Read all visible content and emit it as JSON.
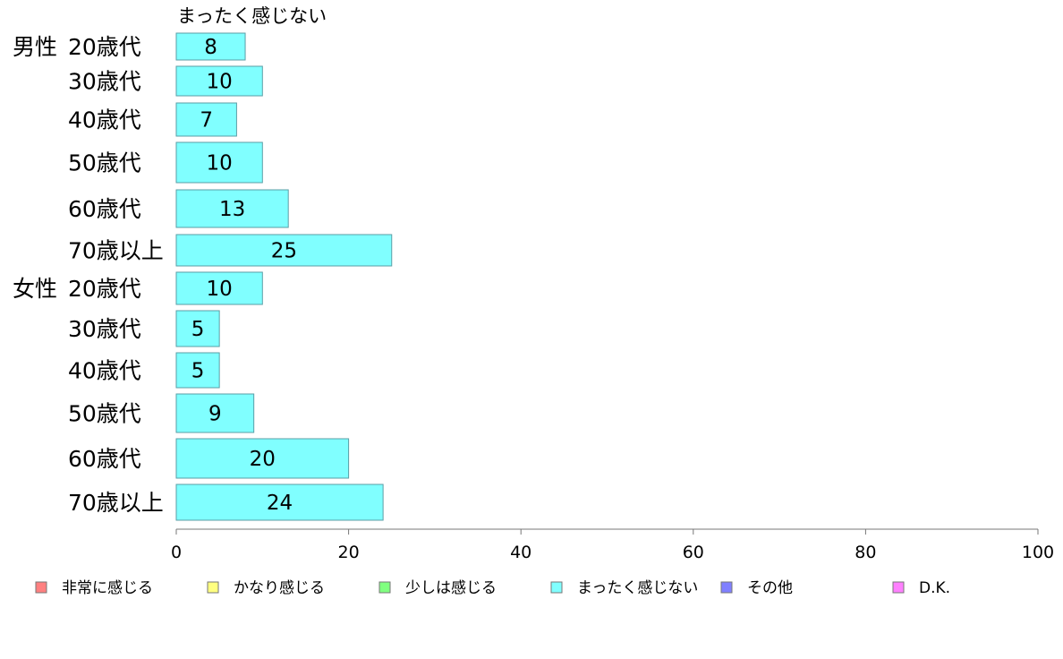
{
  "chart_data": {
    "type": "bar",
    "orientation": "horizontal",
    "stacked": true,
    "series_title": "まったく感じない",
    "groups": [
      {
        "label": "男性",
        "categories": [
          "20歳代",
          "30歳代",
          "40歳代",
          "50歳代",
          "60歳代",
          "70歳以上"
        ],
        "values": [
          8,
          10,
          7,
          10,
          13,
          25
        ]
      },
      {
        "label": "女性",
        "categories": [
          "20歳代",
          "30歳代",
          "40歳代",
          "50歳代",
          "60歳代",
          "70歳以上"
        ],
        "values": [
          10,
          5,
          5,
          9,
          20,
          24
        ]
      }
    ],
    "series": [
      {
        "name": "まったく感じない",
        "color": "#80ffff"
      }
    ],
    "xlim": [
      0,
      100
    ],
    "xticks": [
      0,
      20,
      40,
      60,
      80,
      100
    ],
    "grid": false,
    "legend": {
      "position": "bottom",
      "entries": [
        {
          "label": "非常に感じる",
          "color": "#ff8080"
        },
        {
          "label": "かなり感じる",
          "color": "#ffff80"
        },
        {
          "label": "少しは感じる",
          "color": "#80ff80"
        },
        {
          "label": "まったく感じない",
          "color": "#80ffff"
        },
        {
          "label": "その他",
          "color": "#8080ff"
        },
        {
          "label": "D.K.",
          "color": "#ff80ff"
        }
      ]
    }
  }
}
